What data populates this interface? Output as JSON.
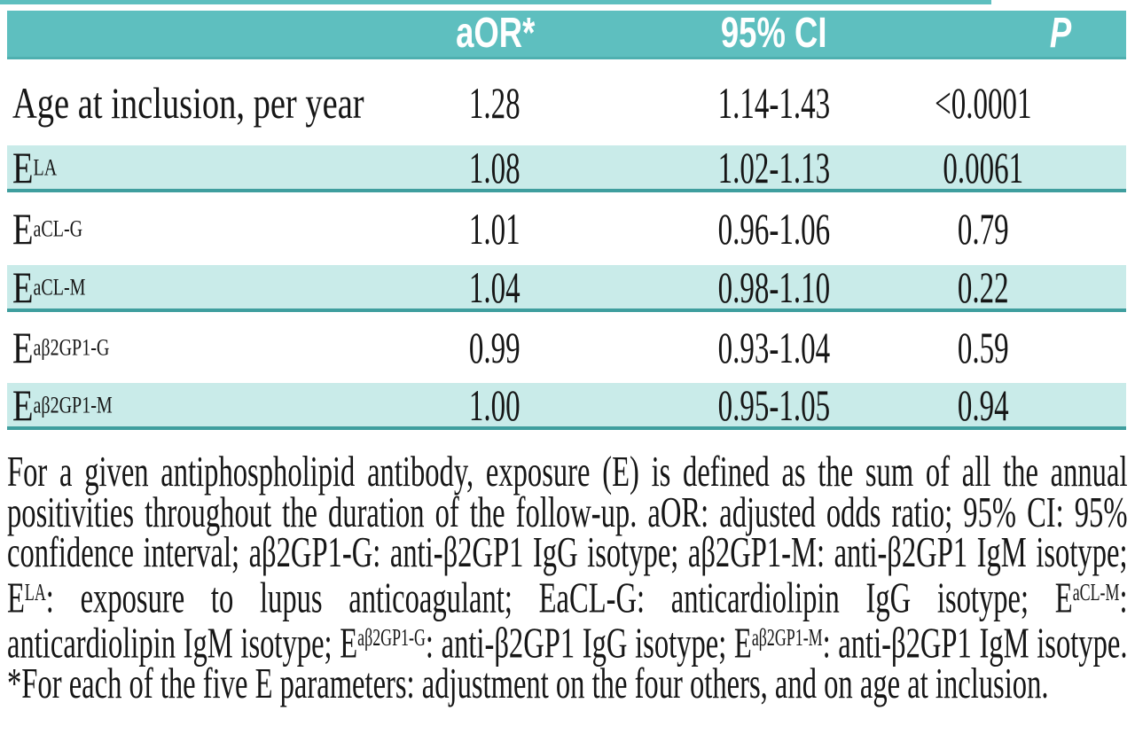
{
  "colors": {
    "header_bg": "#5ebfbf",
    "shaded_row_bg": "#c9ebe9",
    "row_rule": "#3f9e9e",
    "header_text": "#ffffff",
    "body_text": "#161616"
  },
  "table": {
    "headers": {
      "label": "",
      "aor": "aOR*",
      "ci": "95% CI",
      "p": "P"
    },
    "rows": [
      {
        "label_base": "Age at inclusion, per year",
        "sup": "",
        "aor": "1.28",
        "ci": "1.14-1.43",
        "p": "<0.0001",
        "shaded": false
      },
      {
        "label_base": "E",
        "sup": "LA",
        "aor": "1.08",
        "ci": "1.02-1.13",
        "p": "0.0061",
        "shaded": true
      },
      {
        "label_base": "E",
        "sup": "aCL-G",
        "aor": "1.01",
        "ci": "0.96-1.06",
        "p": "0.79",
        "shaded": false
      },
      {
        "label_base": "E",
        "sup": "aCL-M",
        "aor": "1.04",
        "ci": "0.98-1.10",
        "p": "0.22",
        "shaded": true
      },
      {
        "label_base": "E",
        "sup": "aβ2GP1-G",
        "aor": "0.99",
        "ci": "0.93-1.04",
        "p": "0.59",
        "shaded": false
      },
      {
        "label_base": "E",
        "sup": "aβ2GP1-M",
        "aor": "1.00",
        "ci": "0.95-1.05",
        "p": "0.94",
        "shaded": true
      }
    ]
  },
  "chart_data": {
    "type": "table",
    "columns": [
      "",
      "aOR*",
      "95% CI",
      "P"
    ],
    "rows": [
      [
        "Age at inclusion, per year",
        "1.28",
        "1.14-1.43",
        "<0.0001"
      ],
      [
        "E^LA",
        "1.08",
        "1.02-1.13",
        "0.0061"
      ],
      [
        "E^aCL-G",
        "1.01",
        "0.96-1.06",
        "0.79"
      ],
      [
        "E^aCL-M",
        "1.04",
        "0.98-1.10",
        "0.22"
      ],
      [
        "E^aβ2GP1-G",
        "0.99",
        "0.93-1.04",
        "0.59"
      ],
      [
        "E^aβ2GP1-M",
        "1.00",
        "0.95-1.05",
        "0.94"
      ]
    ]
  },
  "footnote": {
    "segments": [
      {
        "t": "For a given antiphospholipid antibody, exposure (E) is defined as the sum of all the annual positivities throughout the duration of the follow-up. aOR: adjusted odds ratio; 95% CI: 95% confidence interval; aβ2GP1-G: anti-β2GP1 IgG isotype; aβ2GP1-M: anti-β2GP1 IgM isotype; E"
      },
      {
        "sup": "LA"
      },
      {
        "t": ": exposure to lupus anticoagulant; EaCL-G: anticardiolipin IgG isotype; E"
      },
      {
        "sup": "aCL-M"
      },
      {
        "t": ": anticardiolipin IgM isotype; E"
      },
      {
        "sup": "aβ2GP1-G"
      },
      {
        "t": ": anti-β2GP1 IgG isotype; E"
      },
      {
        "sup": "aβ2GP1-M"
      },
      {
        "t": ": anti-β2GP1 IgM isotype. *For each of the five E parameters: adjustment on the four others, and on age at inclusion."
      }
    ]
  }
}
